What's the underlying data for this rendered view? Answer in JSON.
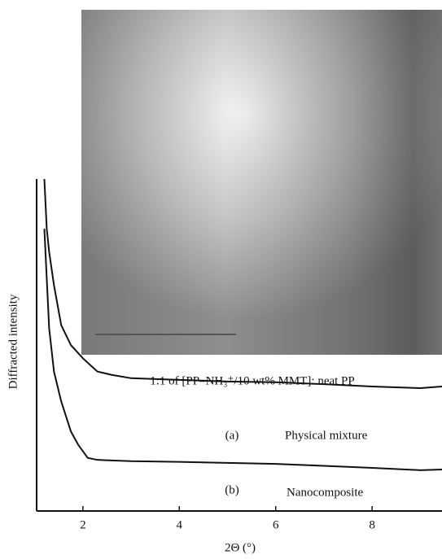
{
  "chart_data": {
    "type": "line",
    "x_label": "2Θ (°)",
    "y_label": "Diffracted intensity",
    "annotation": "1:1 of [PP–NH₃⁺/10 wt% MMT]: neat PP",
    "xlim": [
      1.04,
      9.45
    ],
    "xticks": [
      2,
      4,
      6,
      8
    ],
    "ylim": [
      0,
      100
    ],
    "series": [
      {
        "name": "Physical mixture",
        "label": "(a)",
        "color": "#111111",
        "x": [
          1.2,
          1.25,
          1.3,
          1.4,
          1.55,
          1.75,
          2.0,
          2.3,
          2.6,
          3.0,
          4,
          5,
          6,
          7,
          8,
          9,
          9.45
        ],
        "values": [
          100,
          85,
          78,
          68,
          56,
          50,
          46,
          42,
          41,
          40,
          39.5,
          39,
          38.8,
          38.2,
          37.5,
          37,
          37.5
        ]
      },
      {
        "name": "Nanocomposite",
        "label": "(b)",
        "color": "#111111",
        "x": [
          1.2,
          1.25,
          1.3,
          1.4,
          1.55,
          1.75,
          1.9,
          2.1,
          2.3,
          3,
          4,
          5,
          6,
          7,
          8,
          9,
          9.45
        ],
        "values": [
          85,
          70,
          55,
          42,
          33,
          24,
          20,
          16,
          15.4,
          15,
          14.8,
          14.5,
          14.2,
          13.6,
          13,
          12.3,
          12.5
        ]
      }
    ]
  }
}
